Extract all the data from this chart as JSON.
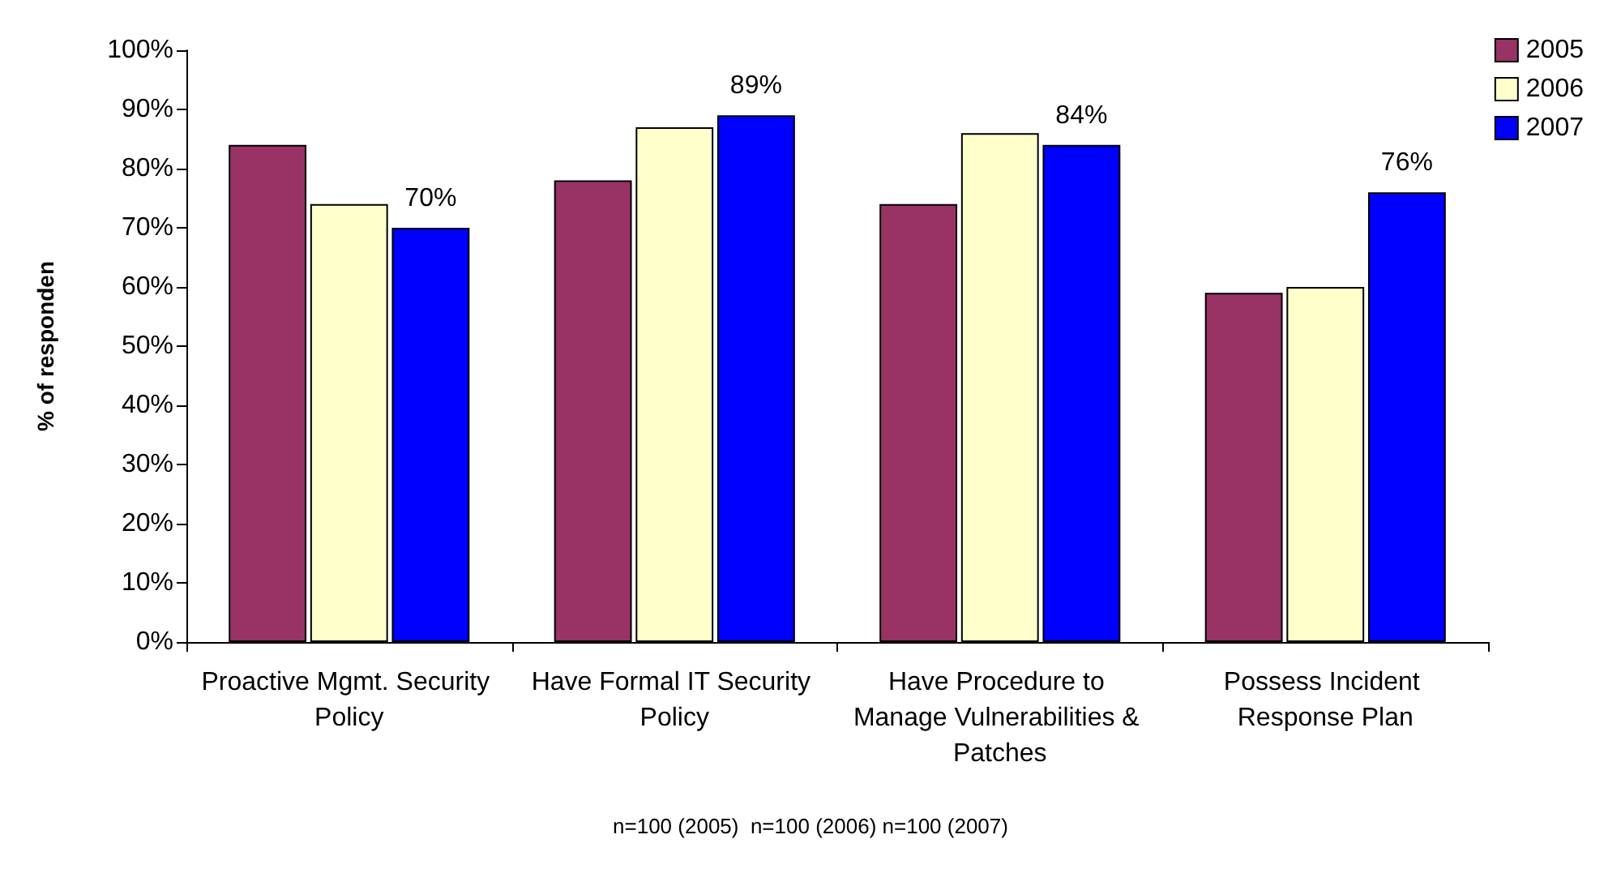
{
  "chart_data": {
    "type": "bar",
    "ylabel": "% of responden",
    "categories": [
      "Proactive Mgmt. Security Policy",
      "Have Formal IT Security Policy",
      "Have Procedure to Manage Vulnerabilities & Patches",
      "Possess Incident Response Plan"
    ],
    "series": [
      {
        "name": "2005",
        "color": "#993366",
        "values": [
          84,
          78,
          74,
          59
        ]
      },
      {
        "name": "2006",
        "color": "#ffffcc",
        "values": [
          74,
          87,
          86,
          60
        ]
      },
      {
        "name": "2007",
        "color": "#0000ff",
        "values": [
          70,
          89,
          84,
          76
        ],
        "value_labels": [
          "70%",
          "89%",
          "84%",
          "76%"
        ]
      }
    ],
    "ylim": [
      0,
      100
    ],
    "yticks": [
      {
        "value": 0,
        "label": "0%"
      },
      {
        "value": 10,
        "label": "10%"
      },
      {
        "value": 20,
        "label": "20%"
      },
      {
        "value": 30,
        "label": "30%"
      },
      {
        "value": 40,
        "label": "40%"
      },
      {
        "value": 50,
        "label": "50%"
      },
      {
        "value": 60,
        "label": "60%"
      },
      {
        "value": 70,
        "label": "70%"
      },
      {
        "value": 80,
        "label": "80%"
      },
      {
        "value": 90,
        "label": "90%"
      },
      {
        "value": 100,
        "label": "100%"
      }
    ],
    "grid": false,
    "legend": "right",
    "annotations": [
      "n=100 (2005)  n=100 (2006) n=100 (2007)"
    ]
  }
}
